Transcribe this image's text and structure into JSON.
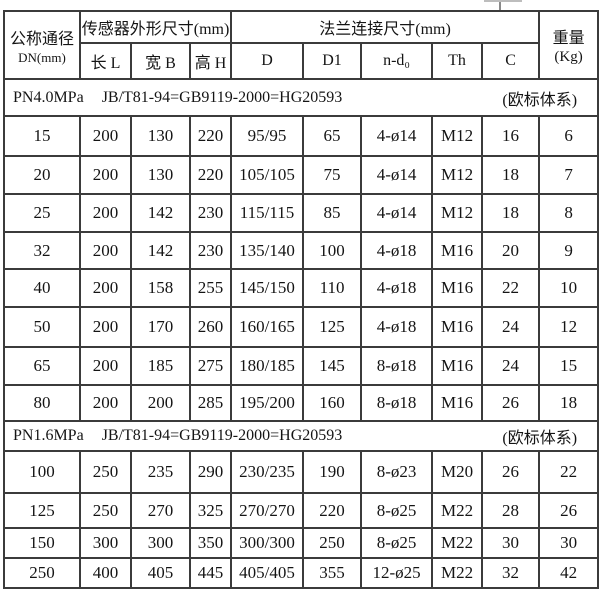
{
  "page": {
    "background_color": "#ffffff",
    "border_color": "#3b3b3b",
    "text_color": "#141414"
  },
  "table": {
    "header": {
      "dn_line1": "公称通径",
      "dn_line2": "DN(mm)",
      "sensor_group_label": "传感器外形尺寸(mm)",
      "flange_group_label": "法兰连接尺寸(mm)",
      "weight_line1": "重量",
      "weight_line2": "(Kg)",
      "sub_columns": [
        "长 L",
        "宽 B",
        "高 H",
        "D",
        "D1",
        "n-d₀",
        "Th",
        "C"
      ]
    },
    "sections": [
      {
        "pressure_rating": "PN4.0MPa",
        "standard": "JB/T81-94=GB9119-2000=HG20593",
        "system_note": "(欧标体系)",
        "rows": [
          [
            "15",
            "200",
            "130",
            "220",
            "95/95",
            "65",
            "4-ø14",
            "M12",
            "16",
            "6"
          ],
          [
            "20",
            "200",
            "130",
            "220",
            "105/105",
            "75",
            "4-ø14",
            "M12",
            "18",
            "7"
          ],
          [
            "25",
            "200",
            "142",
            "230",
            "115/115",
            "85",
            "4-ø14",
            "M12",
            "18",
            "8"
          ],
          [
            "32",
            "200",
            "142",
            "230",
            "135/140",
            "100",
            "4-ø18",
            "M16",
            "20",
            "9"
          ],
          [
            "40",
            "200",
            "158",
            "255",
            "145/150",
            "110",
            "4-ø18",
            "M16",
            "22",
            "10"
          ],
          [
            "50",
            "200",
            "170",
            "260",
            "160/165",
            "125",
            "4-ø18",
            "M16",
            "24",
            "12"
          ],
          [
            "65",
            "200",
            "185",
            "275",
            "180/185",
            "145",
            "8-ø18",
            "M16",
            "24",
            "15"
          ],
          [
            "80",
            "200",
            "200",
            "285",
            "195/200",
            "160",
            "8-ø18",
            "M16",
            "26",
            "18"
          ]
        ]
      },
      {
        "pressure_rating": "PN1.6MPa",
        "standard": "JB/T81-94=GB9119-2000=HG20593",
        "system_note": "(欧标体系)",
        "rows": [
          [
            "100",
            "250",
            "235",
            "290",
            "230/235",
            "190",
            "8-ø23",
            "M20",
            "26",
            "22"
          ],
          [
            "125",
            "250",
            "270",
            "325",
            "270/270",
            "220",
            "8-ø25",
            "M22",
            "28",
            "26"
          ],
          [
            "150",
            "300",
            "300",
            "350",
            "300/300",
            "250",
            "8-ø25",
            "M22",
            "30",
            "30"
          ],
          [
            "250",
            "400",
            "405",
            "445",
            "405/405",
            "355",
            "12-ø25",
            "M22",
            "32",
            "42"
          ]
        ]
      }
    ]
  }
}
